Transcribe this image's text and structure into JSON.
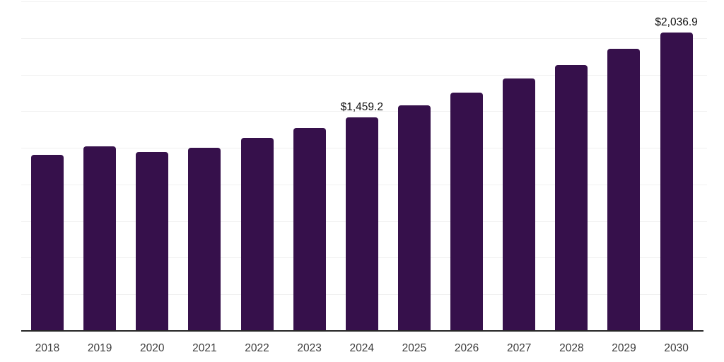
{
  "chart_data": {
    "type": "bar",
    "title": "",
    "categories": [
      "2018",
      "2019",
      "2020",
      "2021",
      "2022",
      "2023",
      "2024",
      "2025",
      "2026",
      "2027",
      "2028",
      "2029",
      "2030"
    ],
    "values": [
      1202,
      1258,
      1221,
      1250,
      1320,
      1386,
      1459.2,
      1541,
      1628,
      1722,
      1815,
      1925,
      2036.9
    ],
    "annotations": [
      {
        "category": "2024",
        "text": "$1,459.2"
      },
      {
        "category": "2030",
        "text": "$2,036.9"
      }
    ],
    "xlabel": "",
    "ylabel": "",
    "ylim": [
      0,
      2250
    ],
    "gridline_step": 250,
    "grid": true,
    "legend": false,
    "y_tick_labels_visible": false
  },
  "colors": {
    "bar": "#36104B",
    "gridline": "#f1f1f1",
    "axis_line": "#262626",
    "tick_label": "#3d3d3d",
    "annotation": "#111111",
    "background": "#ffffff"
  }
}
